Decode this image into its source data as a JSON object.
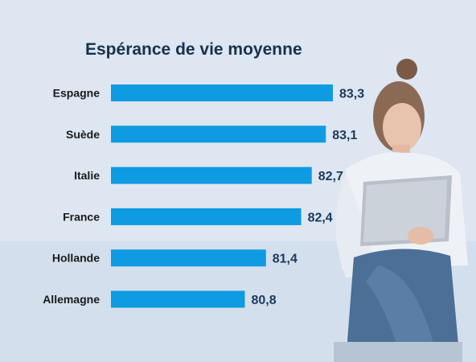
{
  "chart_data": {
    "type": "bar",
    "orientation": "horizontal",
    "title": "Espérance de vie moyenne",
    "categories": [
      "Espagne",
      "Suède",
      "Italie",
      "France",
      "Hollande",
      "Allemagne"
    ],
    "values": [
      83.3,
      83.1,
      82.7,
      82.4,
      81.4,
      80.8
    ],
    "value_labels": [
      "83,3",
      "83,1",
      "82,7",
      "82,4",
      "81,4",
      "80,8"
    ],
    "xlabel": "",
    "ylabel": "",
    "xlim": [
      77.0,
      83.3
    ],
    "grid": false,
    "bar_color": "#0e9be1"
  },
  "colors": {
    "background": "#dbe5f0",
    "title": "#17324f",
    "value_label": "#1b3a5c"
  }
}
